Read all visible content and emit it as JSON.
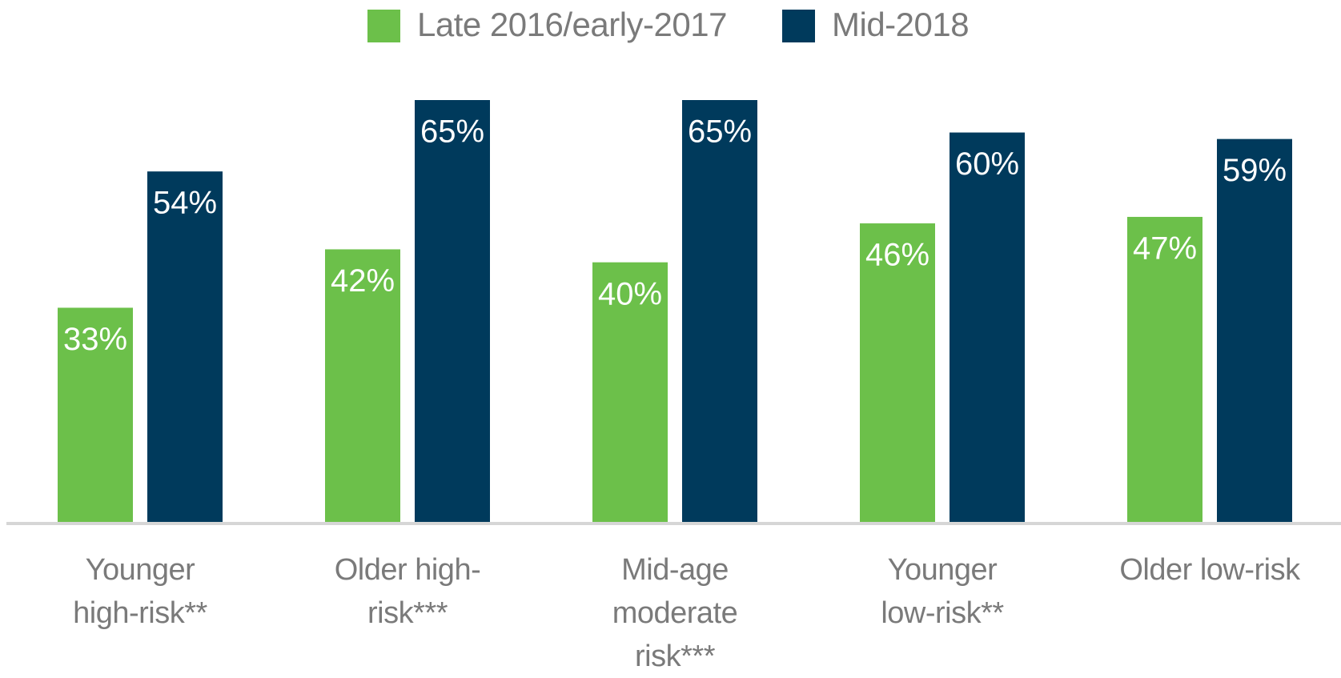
{
  "chart_data": {
    "type": "bar",
    "categories": [
      "Younger high-risk**",
      "Older high-risk***",
      "Mid-age moderate risk***",
      "Younger low-risk**",
      "Older low-risk"
    ],
    "series": [
      {
        "name": "Late 2016/early-2017",
        "color": "#6cc04a",
        "values": [
          33,
          42,
          40,
          46,
          47
        ],
        "value_labels": [
          "33%",
          "42%",
          "40%",
          "46%",
          "47%"
        ]
      },
      {
        "name": "Mid-2018",
        "color": "#003a5c",
        "values": [
          54,
          65,
          65,
          60,
          59
        ],
        "value_labels": [
          "54%",
          "65%",
          "65%",
          "60%",
          "59%"
        ]
      }
    ],
    "legend": "top"
  }
}
